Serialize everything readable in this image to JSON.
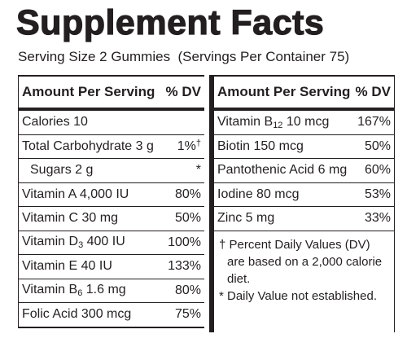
{
  "title": "Supplement Facts",
  "serving": "Serving Size 2 Gummies  (Servings Per Container 75)",
  "left_table": {
    "header": [
      "Amount Per Serving",
      "% DV"
    ],
    "rows": [
      {
        "text": "Calories 10",
        "dv": ""
      },
      {
        "text": "Total Carbohydrate 3 g",
        "dv": "1%",
        "dv_mark": "†"
      },
      {
        "text": "Sugars 2 g",
        "dv": "*",
        "indent": true
      },
      {
        "text": "Vitamin A 4,000 IU",
        "dv": "80%"
      },
      {
        "text": "Vitamin C 30 mg",
        "dv": "50%"
      },
      {
        "text": "Vitamin D",
        "sub": "3",
        "after": " 400 IU",
        "dv": "100%"
      },
      {
        "text": "Vitamin E 40 IU",
        "dv": "133%"
      },
      {
        "text": "Vitamin B",
        "sub": "6",
        "after": " 1.6 mg",
        "dv": "80%"
      },
      {
        "text": "Folic Acid 300 mcg",
        "dv": "75%"
      }
    ]
  },
  "right_table": {
    "header": [
      "Amount Per Serving",
      "% DV"
    ],
    "rows": [
      {
        "text": "Vitamin B",
        "sub": "12",
        "after": " 10 mcg",
        "dv": "167%"
      },
      {
        "text": "Biotin 150 mcg",
        "dv": "50%"
      },
      {
        "text": "Pantothenic Acid 6 mg",
        "dv": "60%"
      },
      {
        "text": "Iodine 80 mcg",
        "dv": "53%"
      },
      {
        "text": "Zinc 5 mg",
        "dv": "33%"
      }
    ]
  },
  "footnotes": [
    "† Percent Daily Values (DV) are based on a 2,000 calorie diet.",
    "* Daily Value not established."
  ]
}
